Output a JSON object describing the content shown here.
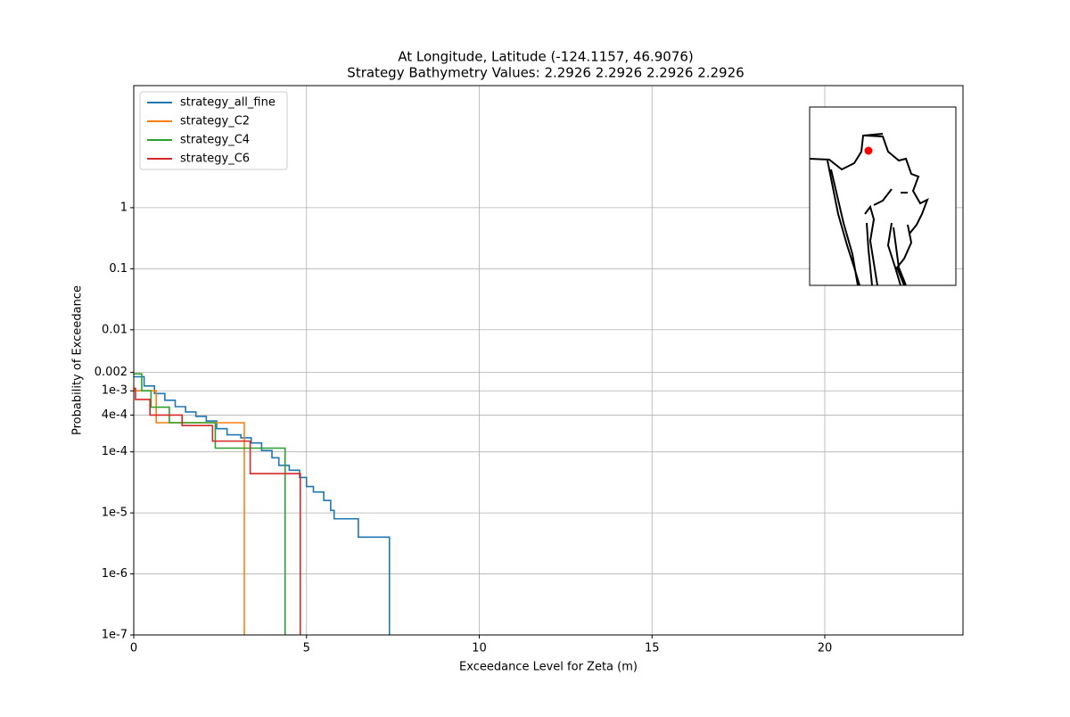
{
  "chart_data": {
    "type": "step",
    "title": "At Longitude, Latitude (-124.1157,  46.9076)",
    "subtitle": "Strategy Bathymetry Values:    2.2926    2.2926    2.2926    2.2926",
    "x_label": "Exceedance Level for Zeta (m)",
    "y_label": "Probability of Exceedance",
    "xlim": [
      0,
      24
    ],
    "xticks": [
      0,
      5,
      10,
      15,
      20
    ],
    "ylim": [
      1e-07,
      100
    ],
    "log_y": true,
    "grid": true,
    "legend": "upper left",
    "yticks": [
      1e-07,
      {
        "value": 1e-06,
        "label": "1e-6"
      },
      {
        "value": 1e-05,
        "label": "1e-5"
      },
      {
        "value": 0.0001,
        "label": "1e-4"
      },
      {
        "value": 0.0004,
        "label": "4e-4"
      },
      {
        "value": 0.001,
        "label": "1e-3"
      },
      0.002,
      0.01,
      0.1,
      1
    ],
    "series": [
      {
        "name": "strategy_all_fine",
        "color": "#1f77b4",
        "x": [
          0,
          0.3,
          0.6,
          0.9,
          1.2,
          1.5,
          1.8,
          2.1,
          2.4,
          2.7,
          3.1,
          3.4,
          3.7,
          4.0,
          4.2,
          4.5,
          4.8,
          5.0,
          5.2,
          5.5,
          5.7,
          5.8,
          6.5,
          7.4
        ],
        "values": [
          0.0017,
          0.0012,
          0.0009,
          0.0007,
          0.00055,
          0.00045,
          0.00038,
          0.00032,
          0.00024,
          0.00019,
          0.00017,
          0.00014,
          0.000105,
          8e-05,
          6e-05,
          5e-05,
          3.8e-05,
          2.7e-05,
          2.2e-05,
          1.6e-05,
          1.1e-05,
          8e-06,
          4e-06,
          0
        ]
      },
      {
        "name": "strategy_C2",
        "color": "#ff7f0e",
        "x": [
          0,
          0.65,
          3.2
        ],
        "values": [
          0.001,
          0.0003,
          0
        ]
      },
      {
        "name": "strategy_C4",
        "color": "#2ca02c",
        "x": [
          0,
          0.23,
          0.5,
          1.03,
          2.36,
          4.38
        ],
        "values": [
          0.0019,
          0.001,
          0.00054,
          0.0003,
          0.000115,
          0
        ]
      },
      {
        "name": "strategy_C6",
        "color": "#d62728",
        "x": [
          0,
          0.05,
          0.47,
          1.4,
          2.28,
          3.37,
          4.82
        ],
        "values": [
          0.0011,
          0.00072,
          0.0004,
          0.00027,
          0.00015,
          4.4e-05,
          0
        ]
      }
    ]
  }
}
